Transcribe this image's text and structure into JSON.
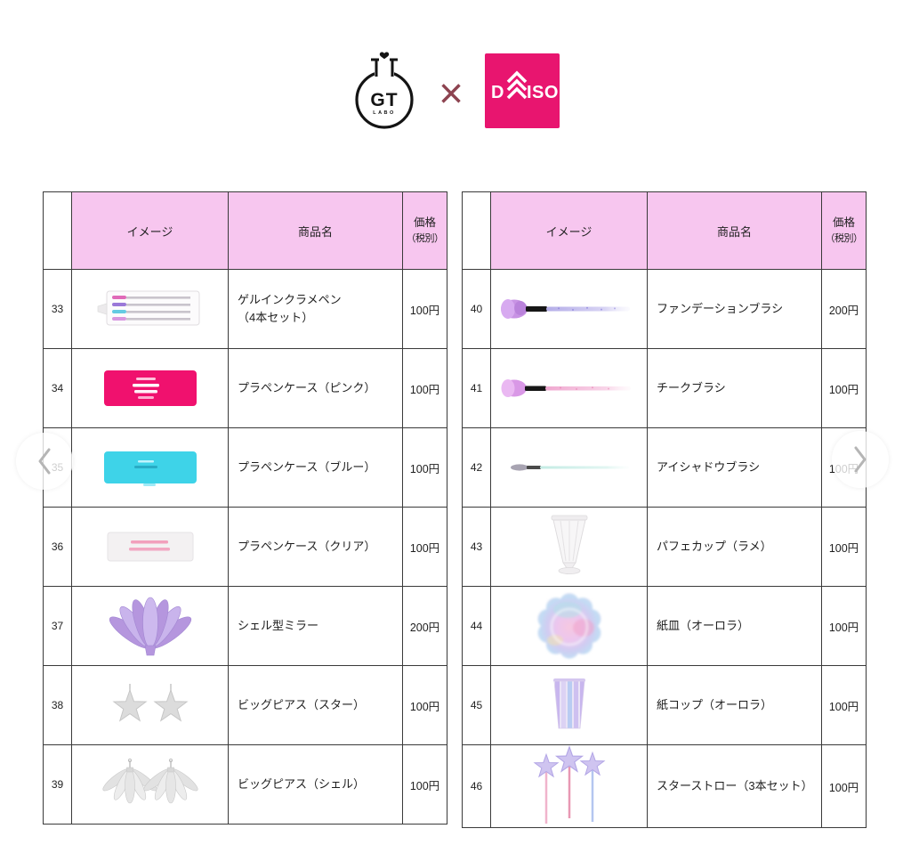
{
  "header": {
    "gt_logo": {
      "initials": "GT",
      "sub": "LABO"
    },
    "separator": "×",
    "daiso": {
      "d": "D",
      "iso": "ISO",
      "bg_color": "#e8156f"
    }
  },
  "columns": {
    "image": "イメージ",
    "name": "商品名",
    "price1": "価格",
    "price2": "（税別）"
  },
  "tables": {
    "left": {
      "rows": [
        {
          "number": "33",
          "icon": "gel-pen-set",
          "name": "ゲルインクラメペン",
          "name2": "（4本セット）",
          "price": "100円"
        },
        {
          "number": "34",
          "icon": "pen-case-pink",
          "name": "プラペンケース（ピンク）",
          "price": "100円"
        },
        {
          "number": "35",
          "icon": "pen-case-blue",
          "name": "プラペンケース（ブルー）",
          "price": "100円"
        },
        {
          "number": "36",
          "icon": "pen-case-clear",
          "name": "プラペンケース（クリア）",
          "price": "100円"
        },
        {
          "number": "37",
          "icon": "shell-mirror",
          "name": "シェル型ミラー",
          "price": "200円"
        },
        {
          "number": "38",
          "icon": "star-earrings",
          "name": "ビッグピアス（スター）",
          "price": "100円"
        },
        {
          "number": "39",
          "icon": "shell-earrings",
          "name": "ビッグピアス（シェル）",
          "price": "100円"
        }
      ]
    },
    "right": {
      "rows": [
        {
          "number": "40",
          "icon": "foundation-brush",
          "name": "ファンデーションブラシ",
          "price": "200円"
        },
        {
          "number": "41",
          "icon": "cheek-brush",
          "name": "チークブラシ",
          "price": "100円"
        },
        {
          "number": "42",
          "icon": "eyeshadow-brush",
          "name": "アイシャドウブラシ",
          "price": "100円"
        },
        {
          "number": "43",
          "icon": "parfait-cup",
          "name": "パフェカップ（ラメ）",
          "price": "100円"
        },
        {
          "number": "44",
          "icon": "paper-plate-aurora",
          "name": "紙皿（オーロラ）",
          "price": "100円"
        },
        {
          "number": "45",
          "icon": "paper-cup-aurora",
          "name": "紙コップ（オーロラ）",
          "price": "100円"
        },
        {
          "number": "46",
          "icon": "star-straws",
          "name": "スターストロー（3本セット）",
          "price": "100円"
        }
      ]
    }
  },
  "carousel": {
    "prev_label": "previous",
    "next_label": "next"
  },
  "colors": {
    "header_pink": "#f7c6ef",
    "daiso_pink": "#e8156f",
    "border": "#3a3a3a"
  }
}
